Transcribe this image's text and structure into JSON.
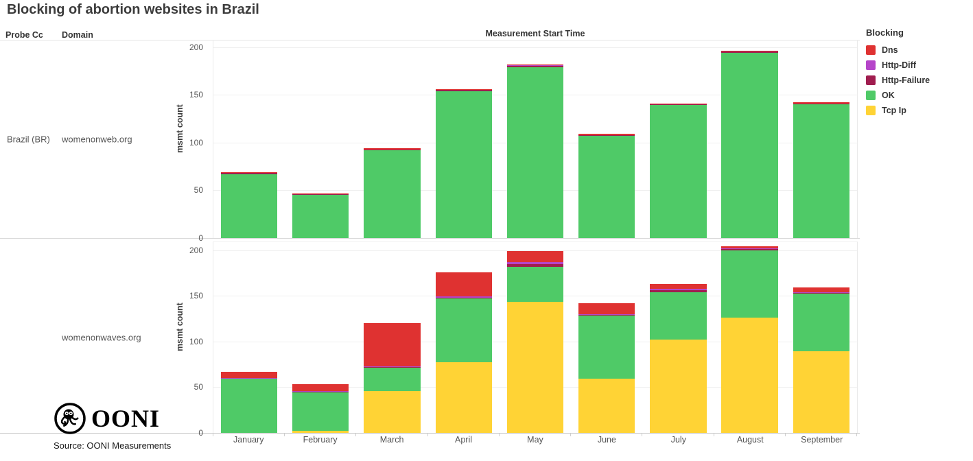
{
  "title": "Blocking of abortion websites in Brazil",
  "columns": {
    "probe_cc": "Probe Cc",
    "domain": "Domain",
    "x_header": "Measurement Start Time"
  },
  "legend": {
    "title": "Blocking",
    "items": [
      {
        "label": "Dns",
        "color": "#df3231"
      },
      {
        "label": "Http-Diff",
        "color": "#b545c9"
      },
      {
        "label": "Http-Failure",
        "color": "#a01d4f"
      },
      {
        "label": "OK",
        "color": "#4fca67"
      },
      {
        "label": "Tcp Ip",
        "color": "#ffd335"
      }
    ]
  },
  "rows": [
    {
      "probe_cc": "Brazil (BR)",
      "domain": "womenonweb.org"
    },
    {
      "probe_cc": "",
      "domain": "womenonwaves.org"
    }
  ],
  "y_axis": {
    "label": "msmt count",
    "ticks": [
      0,
      50,
      100,
      150,
      200
    ],
    "max": 210
  },
  "months": [
    "January",
    "February",
    "March",
    "April",
    "May",
    "June",
    "July",
    "August",
    "September"
  ],
  "footer": {
    "logo_text": "OONI",
    "source": "Source: OONI Measurements"
  },
  "chart_data": [
    {
      "type": "bar",
      "stacked": true,
      "row": "Brazil (BR)",
      "domain": "womenonweb.org",
      "xlabel": "Measurement Start Time",
      "ylabel": "msmt count",
      "ylim": [
        0,
        210
      ],
      "grid": true,
      "legend_position": "right",
      "categories": [
        "January",
        "February",
        "March",
        "April",
        "May",
        "June",
        "July",
        "August",
        "September"
      ],
      "series": [
        {
          "name": "Tcp Ip",
          "key": "tcp-ip",
          "color": "#ffd335",
          "values": [
            0,
            0,
            0,
            0,
            0,
            0,
            0,
            0,
            0
          ]
        },
        {
          "name": "OK",
          "key": "ok",
          "color": "#4fca67",
          "values": [
            67,
            45,
            92,
            154,
            179,
            107,
            139,
            194,
            140
          ]
        },
        {
          "name": "Http-Failure",
          "key": "http-failure",
          "color": "#a01d4f",
          "values": [
            1,
            1,
            1,
            1,
            1,
            1,
            1,
            1,
            1
          ]
        },
        {
          "name": "Http-Diff",
          "key": "http-diff",
          "color": "#b545c9",
          "values": [
            0,
            0,
            0,
            0,
            1,
            0,
            0,
            0,
            0
          ]
        },
        {
          "name": "Dns",
          "key": "dns",
          "color": "#df3231",
          "values": [
            1,
            1,
            1,
            1,
            1,
            1,
            1,
            1,
            1
          ]
        }
      ],
      "totals": [
        69,
        47,
        94,
        156,
        182,
        109,
        141,
        196,
        142
      ]
    },
    {
      "type": "bar",
      "stacked": true,
      "row": "Brazil (BR)",
      "domain": "womenonwaves.org",
      "xlabel": "Measurement Start Time",
      "ylabel": "msmt count",
      "ylim": [
        0,
        210
      ],
      "grid": true,
      "legend_position": "right",
      "categories": [
        "January",
        "February",
        "March",
        "April",
        "May",
        "June",
        "July",
        "August",
        "September"
      ],
      "series": [
        {
          "name": "Tcp Ip",
          "key": "tcp-ip",
          "color": "#ffd335",
          "values": [
            0,
            2,
            46,
            77,
            143,
            59,
            102,
            126,
            89
          ]
        },
        {
          "name": "OK",
          "key": "ok",
          "color": "#4fca67",
          "values": [
            59,
            42,
            25,
            70,
            39,
            69,
            52,
            74,
            63
          ]
        },
        {
          "name": "Http-Failure",
          "key": "http-failure",
          "color": "#a01d4f",
          "values": [
            0,
            1,
            1,
            1,
            3,
            1,
            2,
            1,
            1
          ]
        },
        {
          "name": "Http-Diff",
          "key": "http-diff",
          "color": "#b545c9",
          "values": [
            1,
            1,
            1,
            1,
            2,
            1,
            2,
            1,
            1
          ]
        },
        {
          "name": "Dns",
          "key": "dns",
          "color": "#df3231",
          "values": [
            7,
            7,
            47,
            27,
            12,
            12,
            5,
            2,
            5
          ]
        }
      ],
      "totals": [
        67,
        53,
        120,
        176,
        199,
        142,
        163,
        204,
        159
      ]
    }
  ]
}
